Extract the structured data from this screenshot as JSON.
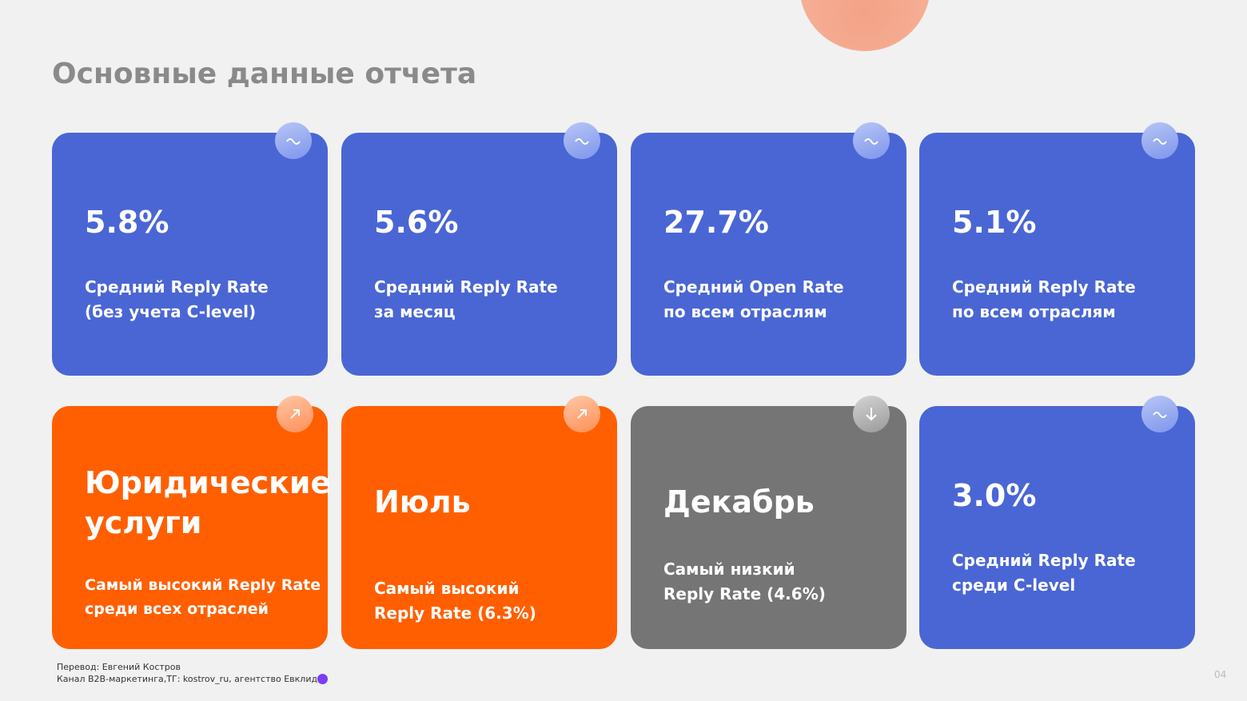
{
  "header": {
    "title": "Основные данные отчета"
  },
  "cards": [
    {
      "headline": [
        "5.8%"
      ],
      "caption": [
        "Средний Reply Rate",
        "(без учета C-level)"
      ],
      "color": "#4a66d4"
    },
    {
      "headline": [
        "5.6%"
      ],
      "caption": [
        "Средний Reply Rate",
        "за месяц"
      ],
      "color": "#4a66d4"
    },
    {
      "headline": [
        "27.7%"
      ],
      "caption": [
        "Средний Open Rate",
        "по всем отраслям"
      ],
      "color": "#4a66d4"
    },
    {
      "headline": [
        "5.1%"
      ],
      "caption": [
        "Средний Reply Rate",
        "по всем отраслям"
      ],
      "color": "#4a66d4"
    },
    {
      "headline": [
        "Юридические",
        "услуги"
      ],
      "caption": [
        "Самый высокий Reply Rate",
        "среди всех отраслей"
      ],
      "color": "#ff5f00"
    },
    {
      "headline": [
        "Июль"
      ],
      "caption": [
        "Самый высокий",
        "Reply Rate (6.3%)"
      ],
      "color": "#ff5f00"
    },
    {
      "headline": [
        "Декабрь"
      ],
      "caption": [
        "Самый низкий",
        "Reply Rate (4.6%)"
      ],
      "color": "#757575"
    },
    {
      "headline": [
        "3.0%"
      ],
      "caption": [
        "Средний Reply Rate",
        "среди C-level"
      ],
      "color": "#4a66d4"
    }
  ],
  "footer": {
    "lines": [
      "Перевод: Евгений Костров",
      "Канал B2B-маркетинга,ТГ: kostrov_ru, агентство Евклид"
    ],
    "page_number": "04"
  }
}
